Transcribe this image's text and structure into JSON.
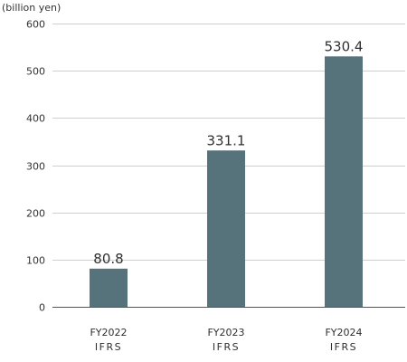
{
  "chart_data": {
    "type": "bar",
    "unit_label": "(billion yen)",
    "categories": [
      "FY2022",
      "FY2023",
      "FY2024"
    ],
    "category_sublabels": [
      "IFRS",
      "IFRS",
      "IFRS"
    ],
    "values": [
      80.8,
      331.1,
      530.4
    ],
    "value_labels": [
      "80.8",
      "331.1",
      "530.4"
    ],
    "y_ticks": [
      "0",
      "100",
      "200",
      "300",
      "400",
      "500",
      "600"
    ],
    "ylim": [
      0,
      600
    ],
    "grid": true,
    "bar_color": "#56727b",
    "grid_color": "#cfcfcf",
    "axis_color": "#555555"
  }
}
